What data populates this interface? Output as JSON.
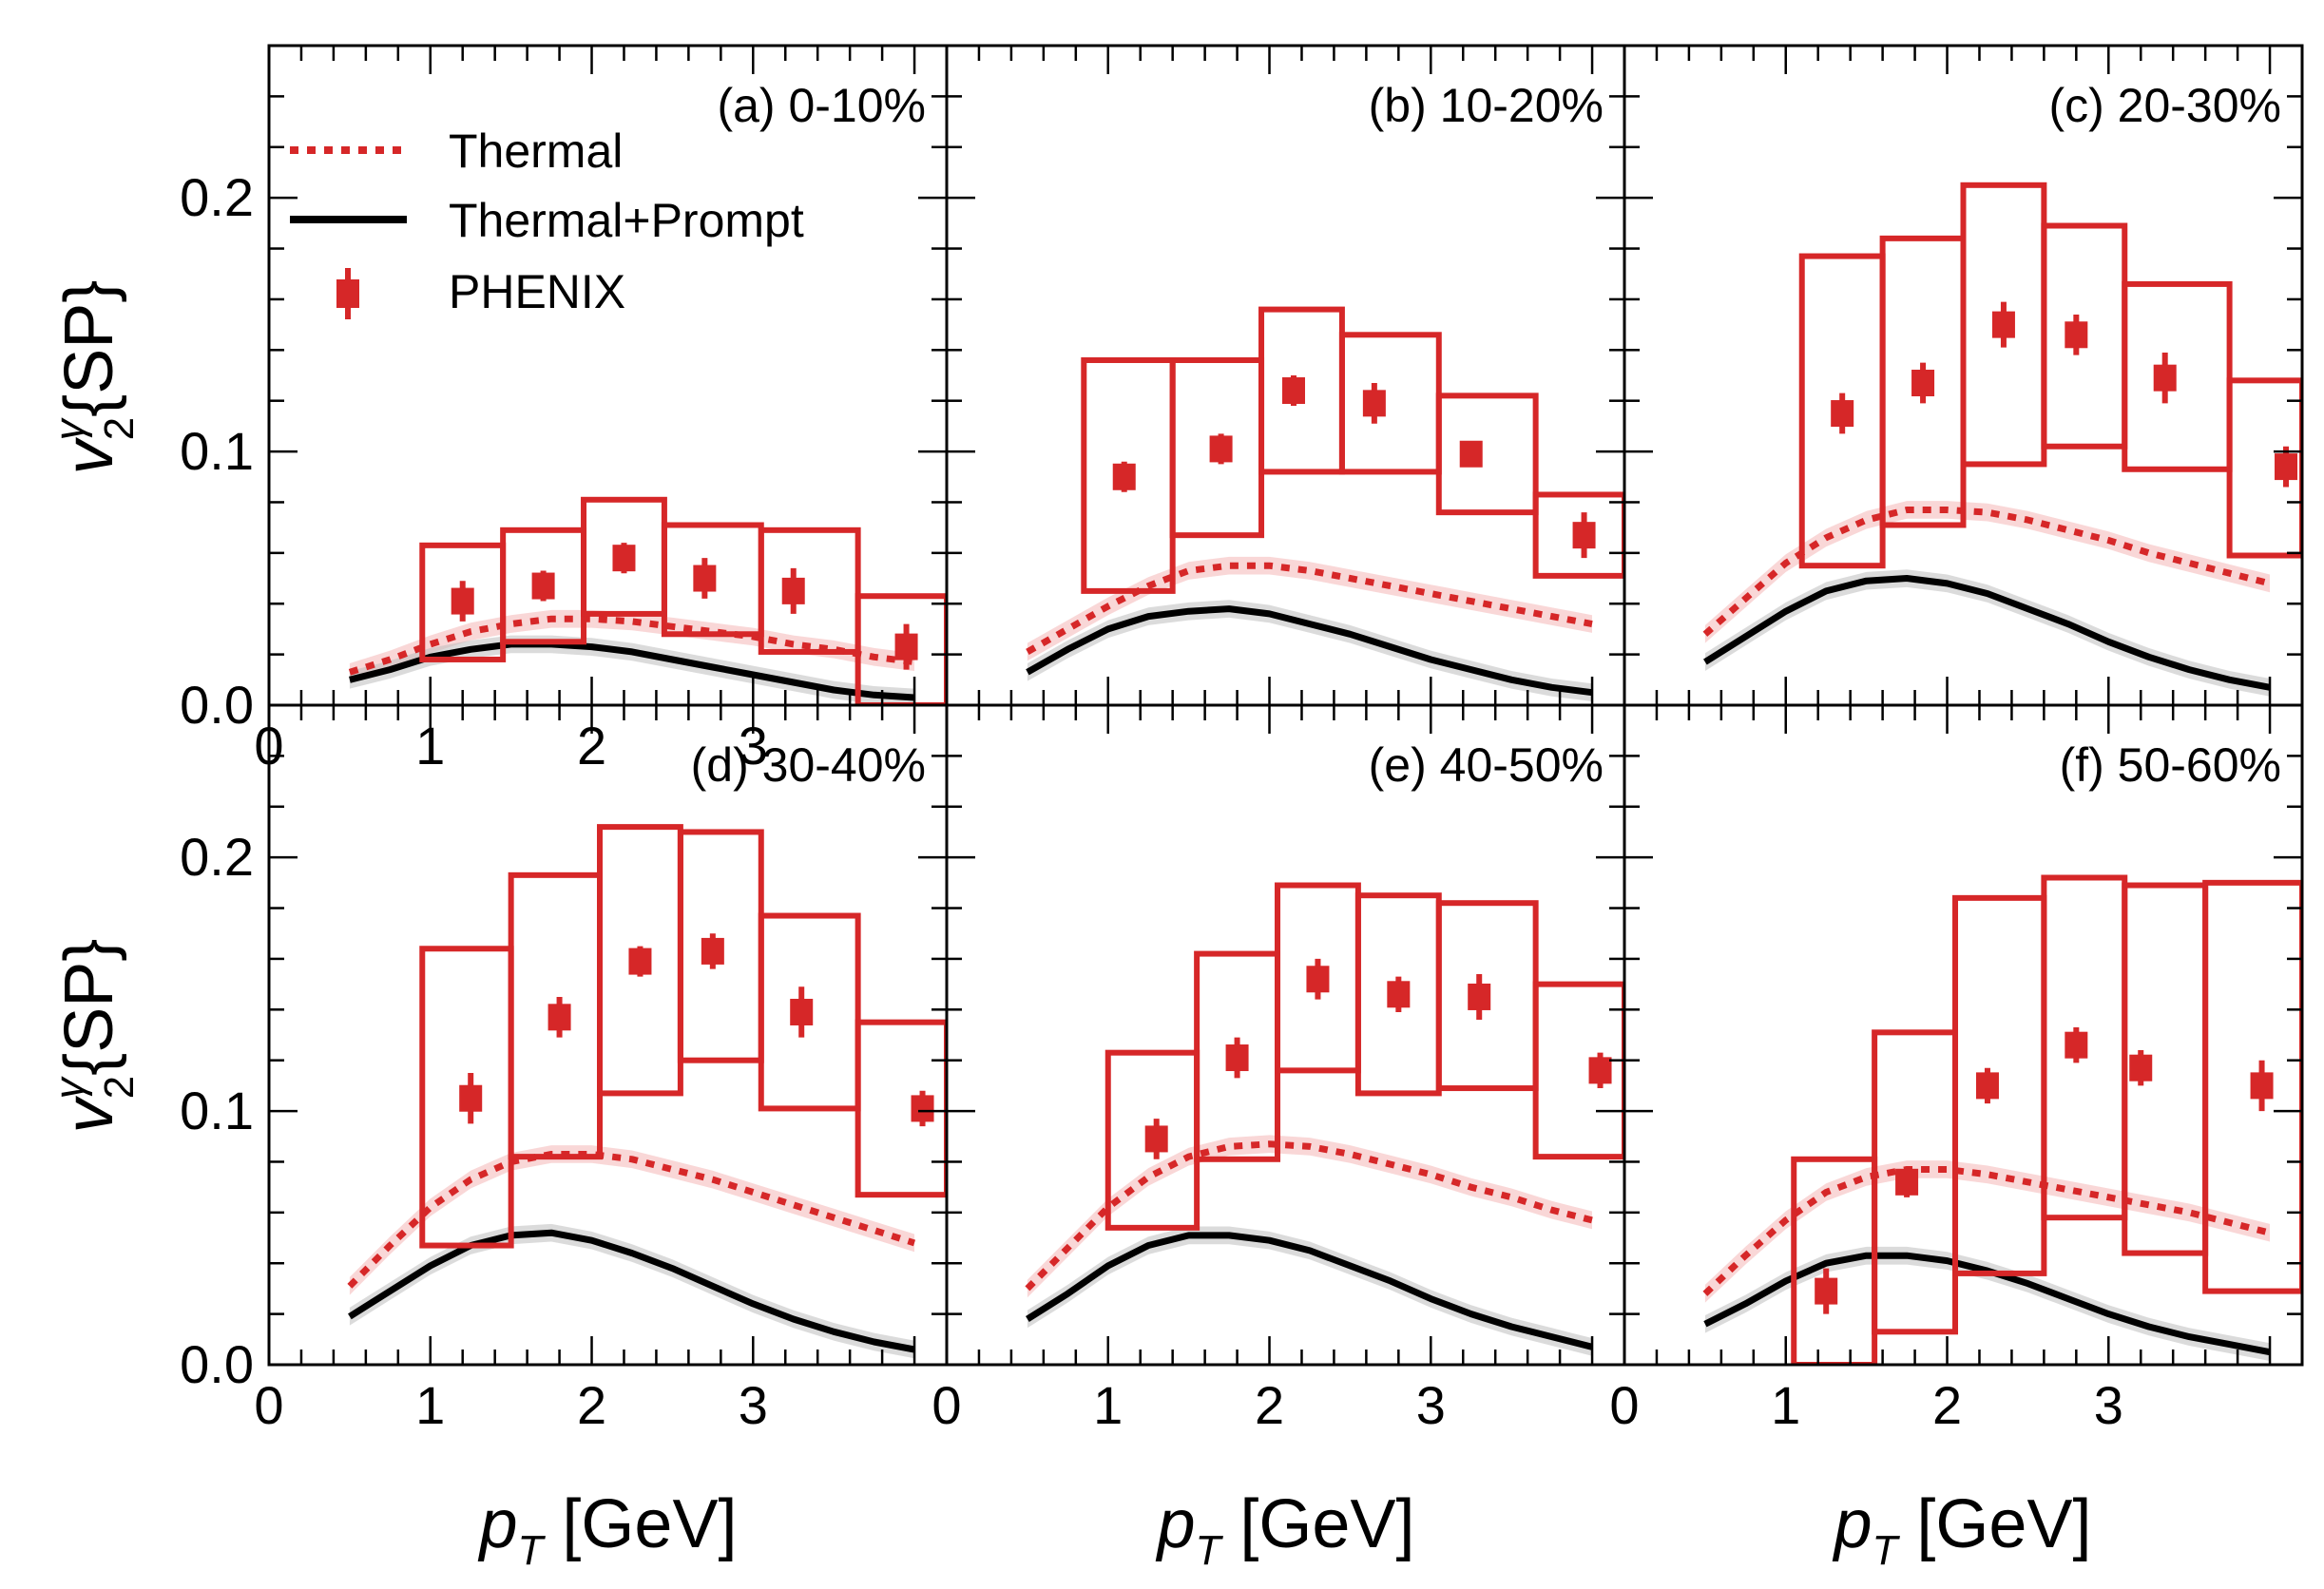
{
  "colors": {
    "phenix": "#d62728",
    "thermal": "#d62728",
    "band_thermal": "#f4b6b6",
    "prompt": "#000000",
    "band_prompt": "#bdbdbd",
    "frame": "#000000"
  },
  "y_axis_label": {
    "var": "v",
    "sup": "γ",
    "sub": "2",
    "rest": "{SP}"
  },
  "x_axis_label": {
    "var": "p",
    "sub": "T",
    "rest": " [GeV]"
  },
  "legend": {
    "thermal": "Thermal",
    "thermal_prompt": "Thermal+Prompt",
    "phenix": "PHENIX"
  },
  "chart_data": [
    {
      "type": "scatter",
      "panel": "a",
      "title": "(a) 0-10%",
      "xlim": [
        0,
        4.2
      ],
      "ylim": [
        0,
        0.26
      ],
      "xticks": [
        "0",
        "1",
        "2",
        "3"
      ],
      "yticks": [
        "0.0",
        "0.1",
        "0.2"
      ],
      "phenix": {
        "x": [
          1.2,
          1.7,
          2.2,
          2.7,
          3.25,
          3.95
        ],
        "y": [
          0.041,
          0.047,
          0.058,
          0.05,
          0.045,
          0.023
        ],
        "stat_err": [
          0.008,
          0.006,
          0.006,
          0.008,
          0.009,
          0.009
        ],
        "sys_box": [
          [
            0.95,
            1.45,
            0.018,
            0.063
          ],
          [
            1.45,
            1.95,
            0.025,
            0.069
          ],
          [
            1.95,
            2.45,
            0.036,
            0.081
          ],
          [
            2.45,
            3.05,
            0.028,
            0.071
          ],
          [
            3.05,
            3.65,
            0.021,
            0.069
          ],
          [
            3.65,
            4.2,
            0.0,
            0.043
          ]
        ]
      },
      "thermal": {
        "x": [
          0.5,
          0.75,
          1.0,
          1.25,
          1.5,
          1.75,
          2.0,
          2.25,
          2.5,
          2.75,
          3.0,
          3.25,
          3.5,
          3.75,
          4.0
        ],
        "y": [
          0.013,
          0.018,
          0.024,
          0.029,
          0.032,
          0.034,
          0.034,
          0.033,
          0.031,
          0.029,
          0.027,
          0.024,
          0.022,
          0.019,
          0.017
        ]
      },
      "thermal_prompt": {
        "x": [
          0.5,
          0.75,
          1.0,
          1.25,
          1.5,
          1.75,
          2.0,
          2.25,
          2.5,
          2.75,
          3.0,
          3.25,
          3.5,
          3.75,
          4.0
        ],
        "y": [
          0.01,
          0.014,
          0.019,
          0.022,
          0.024,
          0.024,
          0.023,
          0.021,
          0.018,
          0.015,
          0.012,
          0.009,
          0.006,
          0.004,
          0.003
        ]
      }
    },
    {
      "type": "scatter",
      "panel": "b",
      "title": "(b) 10-20%",
      "xlim": [
        0,
        4.2
      ],
      "ylim": [
        0,
        0.26
      ],
      "xticks": [],
      "yticks": [],
      "phenix": {
        "x": [
          1.1,
          1.7,
          2.15,
          2.65,
          3.25,
          3.95
        ],
        "y": [
          0.09,
          0.101,
          0.124,
          0.119,
          0.099,
          0.067
        ],
        "stat_err": [
          0.006,
          0.006,
          0.006,
          0.008,
          0.005,
          0.009
        ],
        "sys_box": [
          [
            0.85,
            1.4,
            0.045,
            0.136
          ],
          [
            1.4,
            1.95,
            0.067,
            0.136
          ],
          [
            1.95,
            2.45,
            0.092,
            0.156
          ],
          [
            2.45,
            3.05,
            0.092,
            0.146
          ],
          [
            3.05,
            3.65,
            0.076,
            0.122
          ],
          [
            3.65,
            4.2,
            0.051,
            0.083
          ]
        ]
      },
      "thermal": {
        "x": [
          0.5,
          0.75,
          1.0,
          1.25,
          1.5,
          1.75,
          2.0,
          2.25,
          2.5,
          2.75,
          3.0,
          3.25,
          3.5,
          3.75,
          4.0
        ],
        "y": [
          0.021,
          0.03,
          0.039,
          0.047,
          0.053,
          0.055,
          0.055,
          0.053,
          0.05,
          0.047,
          0.044,
          0.041,
          0.038,
          0.035,
          0.032
        ]
      },
      "thermal_prompt": {
        "x": [
          0.5,
          0.75,
          1.0,
          1.25,
          1.5,
          1.75,
          2.0,
          2.25,
          2.5,
          2.75,
          3.0,
          3.25,
          3.5,
          3.75,
          4.0
        ],
        "y": [
          0.013,
          0.022,
          0.03,
          0.035,
          0.037,
          0.038,
          0.036,
          0.032,
          0.028,
          0.023,
          0.018,
          0.014,
          0.01,
          0.007,
          0.005
        ]
      }
    },
    {
      "type": "scatter",
      "panel": "c",
      "title": "(c) 20-30%",
      "xlim": [
        0,
        4.2
      ],
      "ylim": [
        0,
        0.26
      ],
      "xticks": [],
      "yticks": [],
      "phenix": {
        "x": [
          1.35,
          1.85,
          2.35,
          2.8,
          3.35,
          4.1
        ],
        "y": [
          0.115,
          0.127,
          0.15,
          0.146,
          0.129,
          0.094
        ],
        "stat_err": [
          0.008,
          0.008,
          0.009,
          0.008,
          0.01,
          0.008
        ],
        "sys_box": [
          [
            1.1,
            1.6,
            0.055,
            0.177
          ],
          [
            1.6,
            2.1,
            0.071,
            0.184
          ],
          [
            2.1,
            2.6,
            0.095,
            0.205
          ],
          [
            2.6,
            3.1,
            0.102,
            0.189
          ],
          [
            3.1,
            3.75,
            0.093,
            0.166
          ],
          [
            3.75,
            4.2,
            0.059,
            0.128
          ]
        ]
      },
      "thermal": {
        "x": [
          0.5,
          0.75,
          1.0,
          1.25,
          1.5,
          1.75,
          2.0,
          2.25,
          2.5,
          2.75,
          3.0,
          3.25,
          3.5,
          3.75,
          4.0
        ],
        "y": [
          0.028,
          0.042,
          0.056,
          0.066,
          0.073,
          0.077,
          0.077,
          0.076,
          0.073,
          0.069,
          0.065,
          0.06,
          0.056,
          0.052,
          0.048
        ]
      },
      "thermal_prompt": {
        "x": [
          0.5,
          0.75,
          1.0,
          1.25,
          1.5,
          1.75,
          2.0,
          2.25,
          2.5,
          2.75,
          3.0,
          3.25,
          3.5,
          3.75,
          4.0
        ],
        "y": [
          0.017,
          0.027,
          0.037,
          0.045,
          0.049,
          0.05,
          0.048,
          0.044,
          0.038,
          0.032,
          0.025,
          0.019,
          0.014,
          0.01,
          0.007
        ]
      }
    },
    {
      "type": "scatter",
      "panel": "d",
      "title": "(d) 30-40%",
      "xlim": [
        0,
        4.2
      ],
      "ylim": [
        0,
        0.26
      ],
      "xticks": [
        "0",
        "1",
        "2",
        "3"
      ],
      "yticks": [
        "0.0",
        "0.1",
        "0.2"
      ],
      "phenix": {
        "x": [
          1.25,
          1.8,
          2.3,
          2.75,
          3.3,
          4.05
        ],
        "y": [
          0.105,
          0.137,
          0.159,
          0.163,
          0.139,
          0.101
        ],
        "stat_err": [
          0.01,
          0.008,
          0.006,
          0.007,
          0.01,
          0.007
        ],
        "sys_box": [
          [
            0.95,
            1.5,
            0.047,
            0.164
          ],
          [
            1.5,
            2.05,
            0.082,
            0.193
          ],
          [
            2.05,
            2.55,
            0.107,
            0.212
          ],
          [
            2.55,
            3.05,
            0.12,
            0.21
          ],
          [
            3.05,
            3.65,
            0.101,
            0.177
          ],
          [
            3.65,
            4.2,
            0.067,
            0.135
          ]
        ]
      },
      "thermal": {
        "x": [
          0.5,
          0.75,
          1.0,
          1.25,
          1.5,
          1.75,
          2.0,
          2.25,
          2.5,
          2.75,
          3.0,
          3.25,
          3.5,
          3.75,
          4.0
        ],
        "y": [
          0.031,
          0.047,
          0.062,
          0.073,
          0.08,
          0.083,
          0.083,
          0.081,
          0.077,
          0.073,
          0.068,
          0.063,
          0.058,
          0.053,
          0.048
        ]
      },
      "thermal_prompt": {
        "x": [
          0.5,
          0.75,
          1.0,
          1.25,
          1.5,
          1.75,
          2.0,
          2.25,
          2.5,
          2.75,
          3.0,
          3.25,
          3.5,
          3.75,
          4.0
        ],
        "y": [
          0.019,
          0.029,
          0.039,
          0.047,
          0.051,
          0.052,
          0.049,
          0.044,
          0.038,
          0.031,
          0.024,
          0.018,
          0.013,
          0.009,
          0.006
        ]
      }
    },
    {
      "type": "scatter",
      "panel": "e",
      "title": "(e) 40-50%",
      "xlim": [
        0,
        4.2
      ],
      "ylim": [
        0,
        0.26
      ],
      "xticks": [
        "0",
        "1",
        "2",
        "3"
      ],
      "yticks": [],
      "phenix": {
        "x": [
          1.3,
          1.8,
          2.3,
          2.8,
          3.3,
          4.05
        ],
        "y": [
          0.089,
          0.121,
          0.152,
          0.146,
          0.145,
          0.116
        ],
        "stat_err": [
          0.008,
          0.008,
          0.008,
          0.007,
          0.009,
          0.007
        ],
        "sys_box": [
          [
            1.0,
            1.55,
            0.054,
            0.123
          ],
          [
            1.55,
            2.05,
            0.081,
            0.162
          ],
          [
            2.05,
            2.55,
            0.116,
            0.189
          ],
          [
            2.55,
            3.05,
            0.107,
            0.185
          ],
          [
            3.05,
            3.65,
            0.109,
            0.182
          ],
          [
            3.65,
            4.2,
            0.082,
            0.15
          ]
        ]
      },
      "thermal": {
        "x": [
          0.5,
          0.75,
          1.0,
          1.25,
          1.5,
          1.75,
          2.0,
          2.25,
          2.5,
          2.75,
          3.0,
          3.25,
          3.5,
          3.75,
          4.0
        ],
        "y": [
          0.03,
          0.046,
          0.062,
          0.074,
          0.082,
          0.086,
          0.087,
          0.086,
          0.083,
          0.079,
          0.075,
          0.07,
          0.066,
          0.061,
          0.057
        ]
      },
      "thermal_prompt": {
        "x": [
          0.5,
          0.75,
          1.0,
          1.25,
          1.5,
          1.75,
          2.0,
          2.25,
          2.5,
          2.75,
          3.0,
          3.25,
          3.5,
          3.75,
          4.0
        ],
        "y": [
          0.018,
          0.028,
          0.039,
          0.047,
          0.051,
          0.051,
          0.049,
          0.045,
          0.039,
          0.033,
          0.026,
          0.02,
          0.015,
          0.011,
          0.007
        ]
      }
    },
    {
      "type": "scatter",
      "panel": "f",
      "title": "(f) 50-60%",
      "xlim": [
        0,
        4.2
      ],
      "ylim": [
        0,
        0.26
      ],
      "xticks": [
        "0",
        "1",
        "2",
        "3"
      ],
      "yticks": [],
      "phenix": {
        "x": [
          1.25,
          1.75,
          2.25,
          2.8,
          3.2,
          3.95
        ],
        "y": [
          0.029,
          0.072,
          0.11,
          0.126,
          0.117,
          0.11
        ],
        "stat_err": [
          0.009,
          0.006,
          0.007,
          0.007,
          0.007,
          0.01
        ],
        "sys_box": [
          [
            1.05,
            1.55,
            0.0,
            0.081
          ],
          [
            1.55,
            2.05,
            0.013,
            0.131
          ],
          [
            2.05,
            2.6,
            0.036,
            0.184
          ],
          [
            2.6,
            3.1,
            0.058,
            0.192
          ],
          [
            3.1,
            3.6,
            0.044,
            0.189
          ],
          [
            3.6,
            4.2,
            0.029,
            0.19
          ]
        ]
      },
      "thermal": {
        "x": [
          0.5,
          0.75,
          1.0,
          1.25,
          1.5,
          1.75,
          2.0,
          2.25,
          2.5,
          2.75,
          3.0,
          3.25,
          3.5,
          3.75,
          4.0
        ],
        "y": [
          0.028,
          0.043,
          0.057,
          0.068,
          0.074,
          0.077,
          0.077,
          0.075,
          0.072,
          0.069,
          0.066,
          0.063,
          0.06,
          0.056,
          0.052
        ]
      },
      "thermal_prompt": {
        "x": [
          0.5,
          0.75,
          1.0,
          1.25,
          1.5,
          1.75,
          2.0,
          2.25,
          2.5,
          2.75,
          3.0,
          3.25,
          3.5,
          3.75,
          4.0
        ],
        "y": [
          0.016,
          0.024,
          0.033,
          0.04,
          0.043,
          0.043,
          0.041,
          0.037,
          0.032,
          0.026,
          0.02,
          0.015,
          0.011,
          0.008,
          0.005
        ]
      }
    }
  ]
}
